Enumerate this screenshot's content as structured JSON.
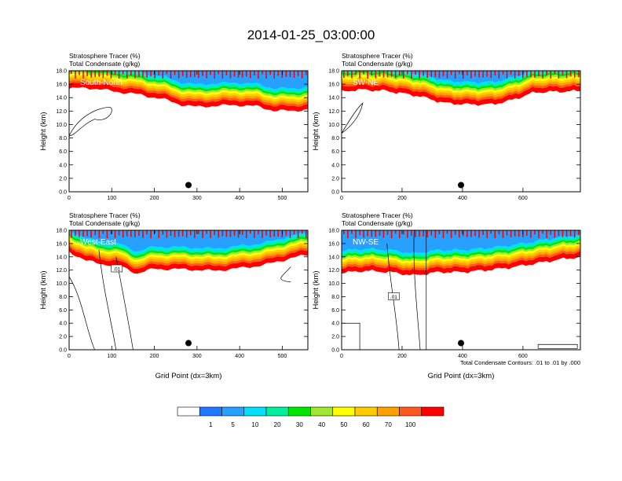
{
  "figure_title": "2014-01-25_03:00:00",
  "footnote": "Total Condensate Contours: .01 to .01 by .000",
  "colors": {
    "levels": [
      "#ffffff",
      "#1e78ff",
      "#28a0ff",
      "#00e0ff",
      "#00f0a0",
      "#00e600",
      "#a0e632",
      "#ffff00",
      "#ffcc00",
      "#ffa000",
      "#ff5a1e",
      "#ff0000"
    ],
    "contour": "#000000",
    "marker": "#000000"
  },
  "colorbar": {
    "labels": [
      "1",
      "5",
      "10",
      "20",
      "30",
      "40",
      "50",
      "60",
      "70",
      "100"
    ]
  },
  "chart_data": [
    {
      "type": "heatmap",
      "panel": "South-North",
      "title_line1": "Stratosphere Tracer   (%)",
      "title_line2": "Total Condensate   (g/kg)",
      "xlabel": "",
      "ylabel": "Height (km)",
      "xlim": [
        0,
        560
      ],
      "ylim": [
        0,
        18
      ],
      "xticks": [
        0,
        100,
        200,
        300,
        400,
        500
      ],
      "yticks": [
        "0.0",
        "2.0",
        "4.0",
        "6.0",
        "8.0",
        "10.0",
        "12.0",
        "14.0",
        "16.0",
        "18.0"
      ],
      "tracer_base_km": [
        [
          0,
          15.3
        ],
        [
          40,
          15.5
        ],
        [
          100,
          15.0
        ],
        [
          160,
          14.5
        ],
        [
          220,
          13.8
        ],
        [
          260,
          13.0
        ],
        [
          300,
          12.6
        ],
        [
          340,
          12.8
        ],
        [
          400,
          12.9
        ],
        [
          440,
          12.7
        ],
        [
          480,
          12.1
        ],
        [
          520,
          12.0
        ],
        [
          560,
          12.3
        ]
      ],
      "cross_section_point": [
        280,
        1.0
      ],
      "contour_label": ""
    },
    {
      "type": "heatmap",
      "panel": "SW-NE",
      "title_line1": "Stratosphere Tracer   (%)",
      "title_line2": "Total Condensate   (g/kg)",
      "xlabel": "",
      "ylabel": "Height (km)",
      "xlim": [
        0,
        790
      ],
      "ylim": [
        0,
        18
      ],
      "xticks": [
        0,
        200,
        400,
        600
      ],
      "yticks": [
        "0.0",
        "2.0",
        "4.0",
        "6.0",
        "8.0",
        "10.0",
        "12.0",
        "14.0",
        "16.0",
        "18.0"
      ],
      "tracer_base_km": [
        [
          0,
          14.9
        ],
        [
          60,
          15.2
        ],
        [
          150,
          15.0
        ],
        [
          260,
          14.2
        ],
        [
          340,
          13.2
        ],
        [
          420,
          13.0
        ],
        [
          500,
          13.0
        ],
        [
          560,
          13.6
        ],
        [
          640,
          14.8
        ],
        [
          720,
          14.9
        ],
        [
          790,
          15.0
        ]
      ],
      "cross_section_point": [
        395,
        1.0
      ],
      "contour_label": ""
    },
    {
      "type": "heatmap",
      "panel": "West-East",
      "title_line1": "Stratosphere Tracer   (%)",
      "title_line2": "Total Condensate   (g/kg)",
      "xlabel": "Grid Point (dx=3km)",
      "ylabel": "Height (km)",
      "xlim": [
        0,
        560
      ],
      "ylim": [
        0,
        18
      ],
      "xticks": [
        0,
        100,
        200,
        300,
        400,
        500
      ],
      "yticks": [
        "0.0",
        "2.0",
        "4.0",
        "6.0",
        "8.0",
        "10.0",
        "12.0",
        "14.0",
        "16.0",
        "18.0"
      ],
      "tracer_base_km": [
        [
          0,
          14.8
        ],
        [
          40,
          13.4
        ],
        [
          80,
          12.9
        ],
        [
          120,
          12.6
        ],
        [
          160,
          11.5
        ],
        [
          200,
          12.2
        ],
        [
          280,
          12.1
        ],
        [
          340,
          11.9
        ],
        [
          400,
          12.3
        ],
        [
          460,
          12.8
        ],
        [
          520,
          13.8
        ],
        [
          560,
          14.3
        ]
      ],
      "cross_section_point": [
        280,
        1.0
      ],
      "contour_label": ".01"
    },
    {
      "type": "heatmap",
      "panel": "NW-SE",
      "title_line1": "Stratosphere Tracer   (%)",
      "title_line2": "Total Condensate   (g/kg)",
      "xlabel": "Grid Point (dx=3km)",
      "ylabel": "Height (km)",
      "xlim": [
        0,
        790
      ],
      "ylim": [
        0,
        18
      ],
      "xticks": [
        0,
        200,
        400,
        600
      ],
      "yticks": [
        "0.0",
        "2.0",
        "4.0",
        "6.0",
        "8.0",
        "10.0",
        "12.0",
        "14.0",
        "16.0",
        "18.0"
      ],
      "tracer_base_km": [
        [
          0,
          11.6
        ],
        [
          80,
          11.9
        ],
        [
          160,
          11.7
        ],
        [
          240,
          11.2
        ],
        [
          320,
          11.7
        ],
        [
          400,
          11.7
        ],
        [
          480,
          12.0
        ],
        [
          560,
          12.4
        ],
        [
          640,
          13.0
        ],
        [
          720,
          13.6
        ],
        [
          790,
          14.0
        ]
      ],
      "cross_section_point": [
        395,
        1.0
      ],
      "contour_label": ".01"
    }
  ]
}
